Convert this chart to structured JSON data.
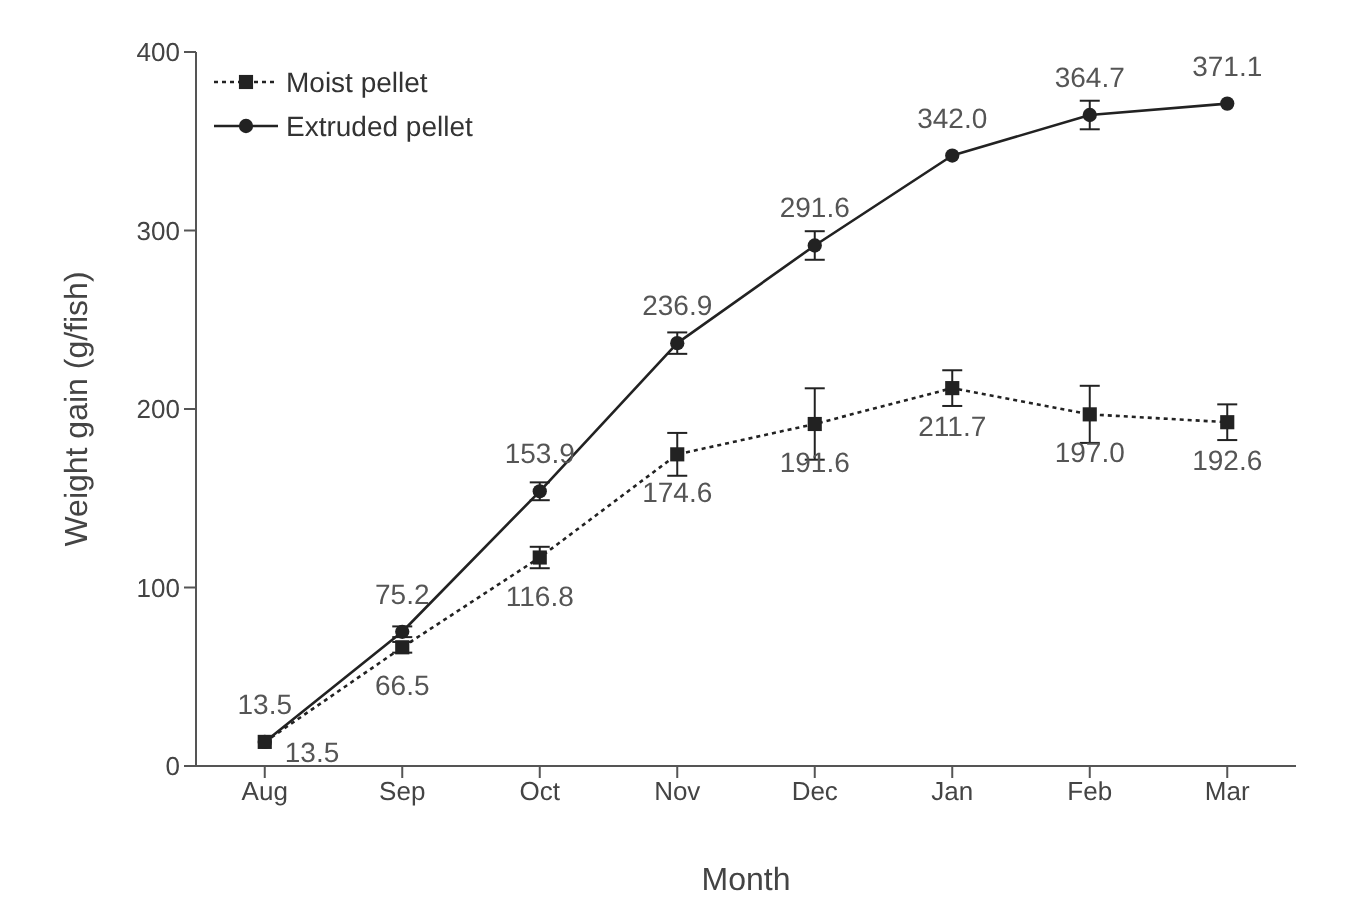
{
  "chart_data": {
    "type": "line",
    "xlabel": "Month",
    "ylabel": "Weight gain (g/fish)",
    "categories": [
      "Aug",
      "Sep",
      "Oct",
      "Nov",
      "Dec",
      "Jan",
      "Feb",
      "Mar"
    ],
    "series": [
      {
        "name": "Moist pellet",
        "color": "#222222",
        "marker": "square",
        "line_style": "dotted",
        "values": [
          13.5,
          66.5,
          116.8,
          174.6,
          191.6,
          211.7,
          197.0,
          192.6
        ],
        "value_labels": [
          "13.5",
          "66.5",
          "116.8",
          "174.6",
          "191.6",
          "211.7",
          "197.0",
          "192.6"
        ],
        "errors": [
          null,
          3,
          6,
          12,
          20,
          10,
          16,
          10
        ]
      },
      {
        "name": "Extruded pellet",
        "color": "#222222",
        "marker": "circle",
        "line_style": "solid",
        "values": [
          13.5,
          75.2,
          153.9,
          236.9,
          291.6,
          342.0,
          364.7,
          371.1
        ],
        "value_labels": [
          "13.5",
          "75.2",
          "153.9",
          "236.9",
          "291.6",
          "342.0",
          "364.7",
          "371.1"
        ],
        "errors": [
          null,
          3,
          5,
          6,
          8,
          null,
          8,
          null
        ]
      }
    ],
    "ylim": [
      0,
      400
    ],
    "yticks": [
      0,
      100,
      200,
      300,
      400
    ],
    "grid": false,
    "legend": "top left"
  }
}
